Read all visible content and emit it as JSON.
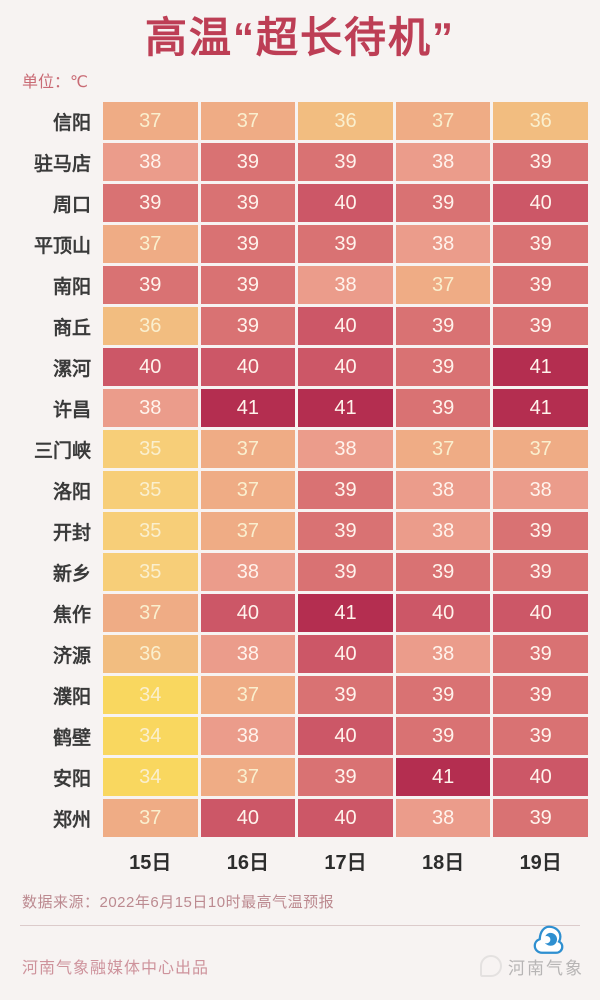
{
  "header": {
    "title": "高温“超长待机”",
    "unit_label": "单位：℃"
  },
  "chart_data": {
    "type": "heatmap",
    "title": "高温“超长待机”",
    "unit": "℃",
    "columns": [
      "15日",
      "16日",
      "17日",
      "18日",
      "19日"
    ],
    "rows": [
      {
        "city": "信阳",
        "temps": [
          37,
          37,
          36,
          37,
          36
        ]
      },
      {
        "city": "驻马店",
        "temps": [
          38,
          39,
          39,
          38,
          39
        ]
      },
      {
        "city": "周口",
        "temps": [
          39,
          39,
          40,
          39,
          40
        ]
      },
      {
        "city": "平顶山",
        "temps": [
          37,
          39,
          39,
          38,
          39
        ]
      },
      {
        "city": "南阳",
        "temps": [
          39,
          39,
          38,
          37,
          39
        ]
      },
      {
        "city": "商丘",
        "temps": [
          36,
          39,
          40,
          39,
          39
        ]
      },
      {
        "city": "漯河",
        "temps": [
          40,
          40,
          40,
          39,
          41
        ]
      },
      {
        "city": "许昌",
        "temps": [
          38,
          41,
          41,
          39,
          41
        ]
      },
      {
        "city": "三门峡",
        "temps": [
          35,
          37,
          38,
          37,
          37
        ]
      },
      {
        "city": "洛阳",
        "temps": [
          35,
          37,
          39,
          38,
          38
        ]
      },
      {
        "city": "开封",
        "temps": [
          35,
          37,
          39,
          38,
          39
        ]
      },
      {
        "city": "新乡",
        "temps": [
          35,
          38,
          39,
          39,
          39
        ]
      },
      {
        "city": "焦作",
        "temps": [
          37,
          40,
          41,
          40,
          40
        ]
      },
      {
        "city": "济源",
        "temps": [
          36,
          38,
          40,
          38,
          39
        ]
      },
      {
        "city": "濮阳",
        "temps": [
          34,
          37,
          39,
          39,
          39
        ]
      },
      {
        "city": "鹤壁",
        "temps": [
          34,
          38,
          40,
          39,
          39
        ]
      },
      {
        "city": "安阳",
        "temps": [
          34,
          37,
          39,
          41,
          40
        ]
      },
      {
        "city": "郑州",
        "temps": [
          37,
          40,
          40,
          38,
          39
        ]
      }
    ],
    "value_range": [
      34,
      41
    ],
    "color_scale": {
      "34": "#F9D75F",
      "35": "#F7CE78",
      "36": "#F2BD80",
      "37": "#EFAC85",
      "38": "#EB9C8B",
      "39": "#D97273",
      "40": "#CC5767",
      "41": "#B42E50"
    },
    "legend_position": "none",
    "grid": false
  },
  "footer": {
    "source_note": "数据来源：2022年6月15日10时最高气温预报",
    "credit": "河南气象融媒体中心出品",
    "watermark": "河南气象"
  },
  "colors": {
    "title": "#BD3E55",
    "unit_label": "#C96B75",
    "row_label": "#3A3A3A",
    "date_header": "#2D2D2D",
    "source_note": "#BC8A90",
    "credit": "#CE939C",
    "background": "#F7F3F2",
    "cell_text_warm": "#FAEFCE",
    "cell_text_light": "#FFF3EC",
    "watermark_logo_blue": "#2E8FD0"
  }
}
